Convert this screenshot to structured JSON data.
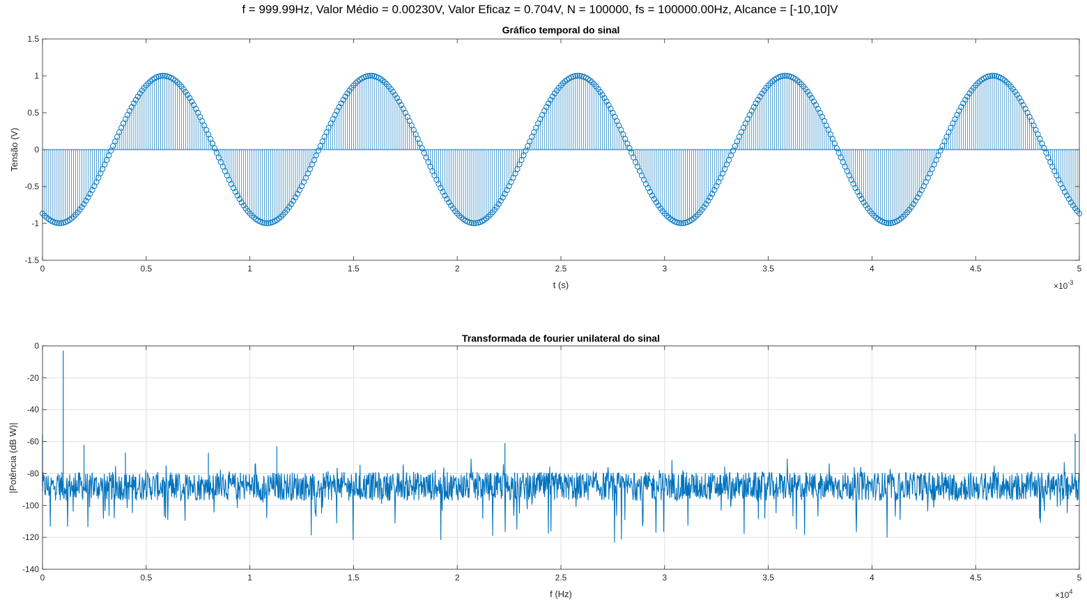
{
  "figure": {
    "suptitle": "f = 999.99Hz, Valor Médio = 0.00230V, Valor Eficaz = 0.704V, N = 100000, fs = 100000.00Hz, Alcance = [-10,10]V",
    "colors": {
      "series": "#0072BD",
      "axis": "#262626",
      "grid": "#dfdfdf",
      "background": "#ffffff"
    }
  },
  "chart_data": [
    {
      "type": "stem",
      "title": "Gráfico temporal do sinal",
      "xlabel": "t (s)",
      "ylabel": "Tensão (V)",
      "xlim": [
        0,
        0.005
      ],
      "ylim": [
        -1.5,
        1.5
      ],
      "x_exponent_label": "×10",
      "x_exponent": "-3",
      "xticks": [
        0,
        0.0005,
        0.001,
        0.0015,
        0.002,
        0.0025,
        0.003,
        0.0035,
        0.004,
        0.0045,
        0.005
      ],
      "xticklabels": [
        "0",
        "0.5",
        "1",
        "1.5",
        "2",
        "2.5",
        "3",
        "3.5",
        "4",
        "4.5",
        "5"
      ],
      "yticks": [
        -1.5,
        -1,
        -0.5,
        0,
        0.5,
        1,
        1.5
      ],
      "yticklabels": [
        "-1.5",
        "-1",
        "-0.5",
        "0",
        "0.5",
        "1",
        "1.5"
      ],
      "grid": false,
      "marker": "circle",
      "signal": {
        "frequency_hz": 999.99,
        "amplitude": 1.0,
        "phase_rad": -2.09,
        "offset": 0.0023,
        "sample_rate_hz": 100000,
        "samples": 501
      }
    },
    {
      "type": "line",
      "title": "Transformada de fourier unilateral do sinal",
      "xlabel": "f (Hz)",
      "ylabel": "|Potência (dB W)|",
      "xlim": [
        0,
        50000
      ],
      "ylim": [
        -140,
        0
      ],
      "x_exponent_label": "×10",
      "x_exponent": "4",
      "xticks": [
        0,
        5000,
        10000,
        15000,
        20000,
        25000,
        30000,
        35000,
        40000,
        45000,
        50000
      ],
      "xticklabels": [
        "0",
        "0.5",
        "1",
        "1.5",
        "2",
        "2.5",
        "3",
        "3.5",
        "4",
        "4.5",
        "5"
      ],
      "yticks": [
        -140,
        -120,
        -100,
        -80,
        -60,
        -40,
        -20,
        0
      ],
      "yticklabels": [
        "-140",
        "-120",
        "-100",
        "-80",
        "-60",
        "-40",
        "-20",
        "0"
      ],
      "grid": true,
      "noise_floor_db": -88,
      "peaks": [
        {
          "x": 0,
          "y": -56
        },
        {
          "x": 1000,
          "y": -3
        },
        {
          "x": 2000,
          "y": -62
        },
        {
          "x": 4000,
          "y": -67
        },
        {
          "x": 8000,
          "y": -67
        },
        {
          "x": 11300,
          "y": -63
        },
        {
          "x": 22300,
          "y": -61
        },
        {
          "x": 49800,
          "y": -55
        }
      ]
    }
  ]
}
